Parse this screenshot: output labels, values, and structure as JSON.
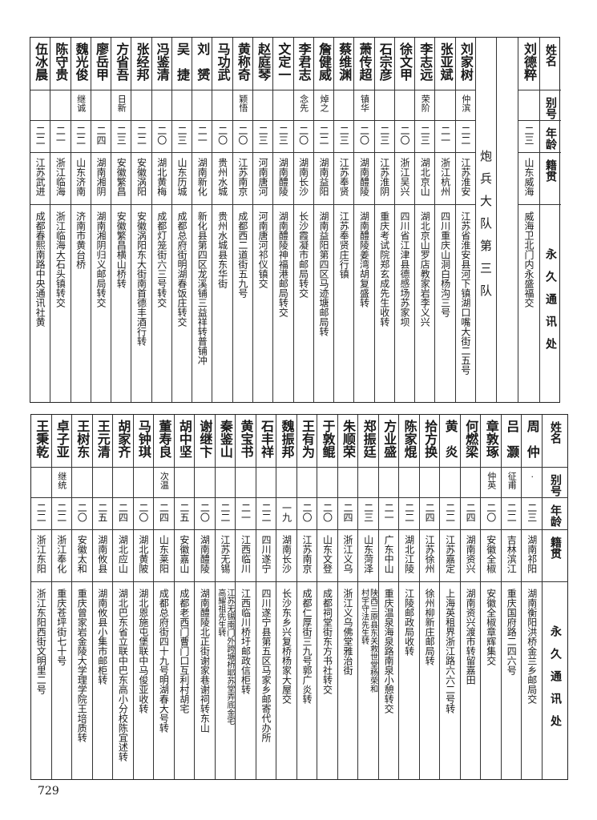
{
  "page_number": "729",
  "top_table": {
    "headers": {
      "name": "姓名",
      "alias": "别号",
      "age": "年龄",
      "native_place": "籍贯",
      "address": "永久通讯处"
    },
    "pre_rows": [
      {
        "name": "刘德粹",
        "alias": "",
        "age": "二三",
        "native_place": "山东威海",
        "address": "威海卫北门内永盛福交"
      }
    ],
    "section_title": "炮兵大队第三队",
    "rows": [
      {
        "name": "刘家树",
        "alias": "仲滨",
        "age": "二二",
        "native_place": "江苏淮安",
        "address": "江苏省淮安县河下镇湖口嘴大街二五号"
      },
      {
        "name": "张亚斌",
        "alias": "",
        "age": "二一",
        "native_place": "浙江杭州",
        "address": "四川重庆山洞白杨沟三号"
      },
      {
        "name": "李志远",
        "alias": "荣阶",
        "age": "二三",
        "native_place": "湖北京山",
        "address": "湖北京山罗店教家岩李义兴"
      },
      {
        "name": "徐文甲",
        "alias": "",
        "age": "二〇",
        "native_place": "浙江吴兴",
        "address": "四川省江津县德感场苏家坝"
      },
      {
        "name": "石宗彦",
        "alias": "",
        "age": "二三",
        "native_place": "江苏淮阴",
        "address": "重庆考试院郑玄成先生收转"
      },
      {
        "name": "萧传超",
        "alias": "镇华",
        "age": "二〇",
        "native_place": "湖南醴陵",
        "address": "湖南醴陵姜湾胡复盛转"
      },
      {
        "name": "蔡维渊",
        "alias": "",
        "age": "二三",
        "native_place": "江苏奉贤",
        "address": "江苏奉贤庄行镇"
      },
      {
        "name": "詹健威",
        "alias": "焯之",
        "age": "二二",
        "native_place": "湖南益阳",
        "address": "湖南益阳第四区马迹塘邮局转"
      },
      {
        "name": "李君志",
        "alias": "念先",
        "age": "二〇",
        "native_place": "湖南长沙",
        "address": "长沙霞凝市邮局转交"
      },
      {
        "name": "文定一",
        "alias": "",
        "age": "二三",
        "native_place": "湖南醴陵",
        "address": "湖南醴陵神福港邮局转交"
      },
      {
        "name": "赵庭琴",
        "alias": "",
        "age": "二三",
        "native_place": "河南唐河",
        "address": "河南唐河祁仪镇交"
      },
      {
        "name": "黄称奇",
        "alias": "颖悟",
        "age": "二〇",
        "native_place": "江苏南京",
        "address": "成都西二道街五九号"
      },
      {
        "name": "马功武",
        "alias": "",
        "age": "二〇",
        "native_place": "贵州水城",
        "address": "贵州水城县东华街"
      },
      {
        "name": "刘　赟",
        "alias": "",
        "age": "二一",
        "native_place": "湖南新化",
        "address": "新化县第四区龙溪铺三益祥转普铺冲"
      },
      {
        "name": "吴　捷",
        "alias": "",
        "age": "二三",
        "native_place": "山东历城",
        "address": "成都总府街明湖春饭庄转交"
      },
      {
        "name": "冯鉴清",
        "alias": "",
        "age": "二〇",
        "native_place": "湖北黄梅",
        "address": "成都灯笼街六三号转交"
      },
      {
        "name": "张经邦",
        "alias": "",
        "age": "二二",
        "native_place": "安徽涡阳",
        "address": "安徽涡阳东大街南首德丰酒行转"
      },
      {
        "name": "方省吾",
        "alias": "日新",
        "age": "二三",
        "native_place": "安徽繁昌",
        "address": "安徽繁昌横山桥转"
      },
      {
        "name": "廖岳甲",
        "alias": "",
        "age": "二四",
        "native_place": "湖南湘阴",
        "address": "湖南湘阴归义邮局转交"
      },
      {
        "name": "魏光俊",
        "alias": "继诚",
        "age": "二二",
        "native_place": "山东济南",
        "address": "济南市黄台桥"
      },
      {
        "name": "陈守贵",
        "alias": "",
        "age": "二一",
        "native_place": "浙江临海",
        "address": "浙江临海大石头镇转交"
      },
      {
        "name": "伍冰晨",
        "alias": "",
        "age": "二二",
        "native_place": "江苏武进",
        "address": "成都春熙南路中央通讯社黄"
      }
    ]
  },
  "bottom_table": {
    "headers": {
      "name": "姓名",
      "alias": "别号",
      "age": "年龄",
      "native_place": "籍贯",
      "address": "永久通讯处"
    },
    "rows": [
      {
        "name": "周　仲",
        "alias": "·",
        "age": "二三",
        "native_place": "湖南祁阳",
        "address": "湖南衡阳洪桥金兰乡邮局交"
      },
      {
        "name": "吕　灏",
        "alias": "征甫",
        "age": "二二",
        "native_place": "吉林滨江",
        "address": "重庆国府路二四六号"
      },
      {
        "name": "章敦琢",
        "alias": "仲英",
        "age": "二〇",
        "native_place": "安徽全椒",
        "address": "安徽全椒章辉集交"
      },
      {
        "name": "何燃梁",
        "alias": "",
        "age": "二四",
        "native_place": "湖南资兴",
        "address": "湖南资兴渡市转留嘉田"
      },
      {
        "name": "黄　炎",
        "alias": "",
        "age": "二二",
        "native_place": "江苏嘉定",
        "address": "上海英租界浙江路六六二号转"
      },
      {
        "name": "拾方换",
        "alias": "",
        "age": "二四",
        "native_place": "江苏徐州",
        "address": "徐州柳新庄邮局转"
      },
      {
        "name": "陈家焜",
        "alias": "",
        "age": "二二",
        "native_place": "湖北江陵",
        "address": "江陵邮政局收转"
      },
      {
        "name": "方业盛",
        "alias": "",
        "age": "二一",
        "native_place": "广东中山",
        "address": "重庆温泉海泉路南泉小憩转交"
      },
      {
        "name": "郑振廷",
        "alias": "",
        "age": "二三",
        "native_place": "山东菏泽",
        "address": "陕西三原县东关救世堂杨荣和",
        "address_line2": "村宇守法先生转"
      },
      {
        "name": "朱顺荣",
        "alias": "",
        "age": "二四",
        "native_place": "浙江义乌",
        "address": "浙江义乌佛堂雅治街"
      },
      {
        "name": "于敦鲲",
        "alias": "",
        "age": "二〇",
        "native_place": "山东文登",
        "address": "成都祠堂街东方书社转交"
      },
      {
        "name": "王有为",
        "alias": "",
        "age": "二〇",
        "native_place": "江苏南京",
        "address": "成都仁厚街三九号郭广炎转"
      },
      {
        "name": "魏振邦",
        "alias": "",
        "age": "一九",
        "native_place": "湖南长沙",
        "address": "长沙东乡兴复桥杨家大屋交"
      },
      {
        "name": "石丰祥",
        "alias": "",
        "age": "二二",
        "native_place": "四川遂宁",
        "address": "四川遂宁县第五区马家乡邮寄代办所"
      },
      {
        "name": "黄宝书",
        "alias": "",
        "age": "二一",
        "native_place": "江西临川",
        "address": "江西临川桥圩邮政信柜转"
      },
      {
        "name": "秦鉴山",
        "alias": "",
        "age": "二二",
        "native_place": "江苏无锡",
        "address": "江苏无锡南门外跨塘桥耶苏堂弄底金宅",
        "address_line2": "高耀祖先生转"
      },
      {
        "name": "谢继卞",
        "alias": "",
        "age": "二〇",
        "native_place": "湖南醴陵",
        "address": "湖南醴陵北正街谢家巷谢祠转东山"
      },
      {
        "name": "胡中坚",
        "alias": "",
        "age": "二五",
        "native_place": "安徽嘉山",
        "address": "成都老西门曹门口互利村胡宅"
      },
      {
        "name": "董寿良",
        "alias": "次温",
        "age": "二四",
        "native_place": "山东莱阳",
        "address": "成都总府街四十九号明湖春大号转"
      },
      {
        "name": "马钟琪",
        "alias": "",
        "age": "二〇",
        "native_place": "湖北黄陂",
        "address": "湖北恩施屯堡联中马俊亚收转"
      },
      {
        "name": "胡家齐",
        "alias": "",
        "age": "二四",
        "native_place": "湖北应山",
        "address": "湖北巴东省立联中巴东高小分校陈宜述转"
      },
      {
        "name": "王元清",
        "alias": "",
        "age": "二五",
        "native_place": "湖南攸县",
        "address": "湖南攸县小集市邮柜转"
      },
      {
        "name": "王树东",
        "alias": "",
        "age": "二〇",
        "native_place": "安徽太和",
        "address": "重庆曾家岩金陵大学理学院王培质转"
      },
      {
        "name": "卓子亚",
        "alias": "继统",
        "age": "二二",
        "native_place": "浙江奉化",
        "address": "重庆苍坪街七十号"
      },
      {
        "name": "王秉乾",
        "alias": "",
        "age": "二二",
        "native_place": "浙江东阳",
        "address": "浙江东阳西街文明里二号"
      }
    ]
  }
}
